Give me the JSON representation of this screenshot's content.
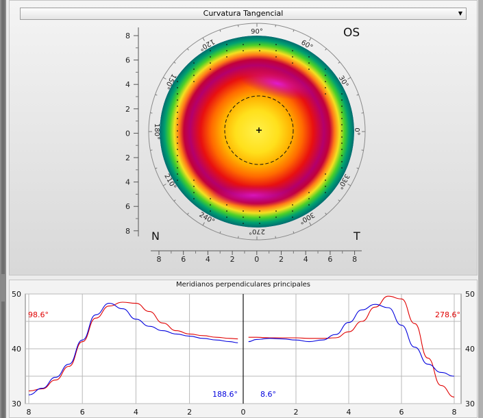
{
  "map_view": {
    "dropdown_label": "Curvatura Tangencial",
    "eye_label": "OS",
    "nasal_label": "N",
    "temporal_label": "T",
    "vertical_ticks": [
      "8",
      "6",
      "4",
      "2",
      "0",
      "2",
      "4",
      "6",
      "8"
    ],
    "horizontal_ticks": [
      "8",
      "6",
      "4",
      "2",
      "0",
      "2",
      "4",
      "6",
      "8"
    ],
    "angle_labels": [
      "0°",
      "30°",
      "60°",
      "90°",
      "120°",
      "150°",
      "180°",
      "210°",
      "240°",
      "270°",
      "300°",
      "330°"
    ]
  },
  "profile": {
    "title": "Meridianos perpendiculares principales",
    "y_left_ticks": [
      "50",
      "40",
      "30"
    ],
    "y_right_ticks": [
      "50",
      "40",
      "30"
    ],
    "x_ticks": [
      "8",
      "6",
      "4",
      "2",
      "0",
      "2",
      "4",
      "6",
      "8"
    ],
    "left_red_label": "98.6°",
    "left_blue_label": "188.6°",
    "right_red_label": "278.6°",
    "right_blue_label": "8.6°",
    "colors": {
      "red": "#e00000",
      "blue": "#0000dd"
    }
  },
  "chart_data": [
    {
      "type": "heatmap",
      "title": "Curvatura Tangencial",
      "xlabel": "",
      "ylabel": "",
      "xlim": [
        -8,
        8
      ],
      "ylim": [
        -8,
        8
      ],
      "legend": "none"
    },
    {
      "type": "line",
      "title": "Meridianos perpendiculares principales",
      "ylim": [
        30,
        50
      ],
      "grid": true,
      "series": [
        {
          "name": "98.6°",
          "color": "#e00000",
          "x": [
            8,
            7.5,
            7,
            6.5,
            6,
            5.5,
            5,
            4.5,
            4,
            3.5,
            3,
            2.5,
            2,
            1.5,
            1,
            0.5,
            0.2
          ],
          "values": [
            32.3,
            32.7,
            34.3,
            36.8,
            41.3,
            45.6,
            47.8,
            48.5,
            48.3,
            46.8,
            44.7,
            43.3,
            42.7,
            42.4,
            42.1,
            41.9,
            41.8
          ]
        },
        {
          "name": "188.6°",
          "color": "#0000dd",
          "x": [
            8,
            7.5,
            7,
            6.5,
            6,
            5.5,
            5,
            4.5,
            4,
            3.5,
            3,
            2.5,
            2,
            1.5,
            1,
            0.5,
            0.2
          ],
          "values": [
            31.6,
            32.8,
            34.8,
            37.2,
            41.6,
            46.2,
            48.3,
            47.3,
            45.4,
            44.1,
            43.3,
            42.7,
            42.3,
            41.9,
            41.6,
            41.3,
            41.1
          ]
        },
        {
          "name": "278.6°",
          "color": "#e00000",
          "x": [
            0.2,
            0.5,
            1,
            1.5,
            2,
            2.5,
            3,
            3.5,
            4,
            4.5,
            5,
            5.5,
            6,
            6.5,
            7,
            7.5,
            8
          ],
          "values": [
            42.1,
            42.1,
            42.0,
            42.0,
            42.0,
            41.9,
            41.9,
            42.0,
            43.1,
            45.0,
            47.6,
            49.6,
            49.1,
            44.6,
            38.3,
            33.3,
            31.2
          ]
        },
        {
          "name": "8.6°",
          "color": "#0000dd",
          "x": [
            0.2,
            0.5,
            1,
            1.5,
            2,
            2.5,
            3,
            3.5,
            4,
            4.5,
            5,
            5.5,
            6,
            6.5,
            7,
            7.5,
            8
          ],
          "values": [
            41.3,
            41.7,
            41.9,
            41.8,
            41.6,
            41.3,
            41.6,
            42.6,
            44.8,
            47.1,
            48.1,
            47.5,
            44.3,
            40.3,
            37.2,
            35.7,
            35.0
          ]
        }
      ]
    }
  ]
}
